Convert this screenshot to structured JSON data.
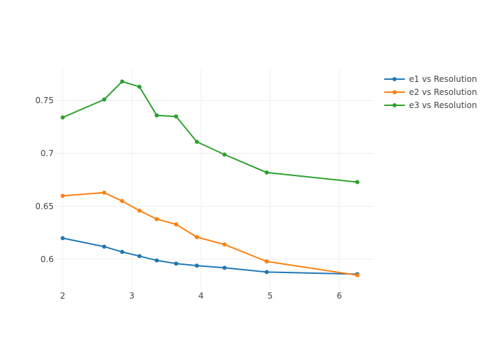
{
  "chart_data": {
    "type": "line",
    "title": "",
    "xlabel": "",
    "ylabel": "",
    "xlim": [
      1.89,
      6.5
    ],
    "ylim": [
      0.572,
      0.78
    ],
    "grid": true,
    "legend_position": "top-right",
    "x_ticks": [
      {
        "value": 2,
        "label": "2"
      },
      {
        "value": 3,
        "label": "3"
      },
      {
        "value": 4,
        "label": "4"
      },
      {
        "value": 5,
        "label": "5"
      },
      {
        "value": 6,
        "label": "6"
      }
    ],
    "y_ticks": [
      {
        "value": 0.6,
        "label": "0.6"
      },
      {
        "value": 0.65,
        "label": "0.65"
      },
      {
        "value": 0.7,
        "label": "0.7"
      },
      {
        "value": 0.75,
        "label": "0.75"
      }
    ],
    "series": [
      {
        "name": "e1 vs Resolution",
        "color": "#1f77b4",
        "x": [
          2.0,
          2.6,
          2.86,
          3.11,
          3.36,
          3.64,
          3.94,
          4.34,
          4.95,
          6.26
        ],
        "y": [
          0.62,
          0.612,
          0.607,
          0.603,
          0.599,
          0.596,
          0.594,
          0.592,
          0.588,
          0.586
        ]
      },
      {
        "name": "e2 vs Resolution",
        "color": "#ff7f0e",
        "x": [
          2.0,
          2.6,
          2.86,
          3.11,
          3.36,
          3.64,
          3.94,
          4.34,
          4.95,
          6.26
        ],
        "y": [
          0.66,
          0.663,
          0.655,
          0.646,
          0.638,
          0.633,
          0.621,
          0.614,
          0.598,
          0.585
        ]
      },
      {
        "name": "e3 vs Resolution",
        "color": "#2ca02c",
        "x": [
          2.0,
          2.6,
          2.86,
          3.11,
          3.36,
          3.64,
          3.94,
          4.34,
          4.95,
          6.26
        ],
        "y": [
          0.734,
          0.751,
          0.768,
          0.763,
          0.736,
          0.735,
          0.711,
          0.699,
          0.682,
          0.673
        ]
      }
    ]
  }
}
